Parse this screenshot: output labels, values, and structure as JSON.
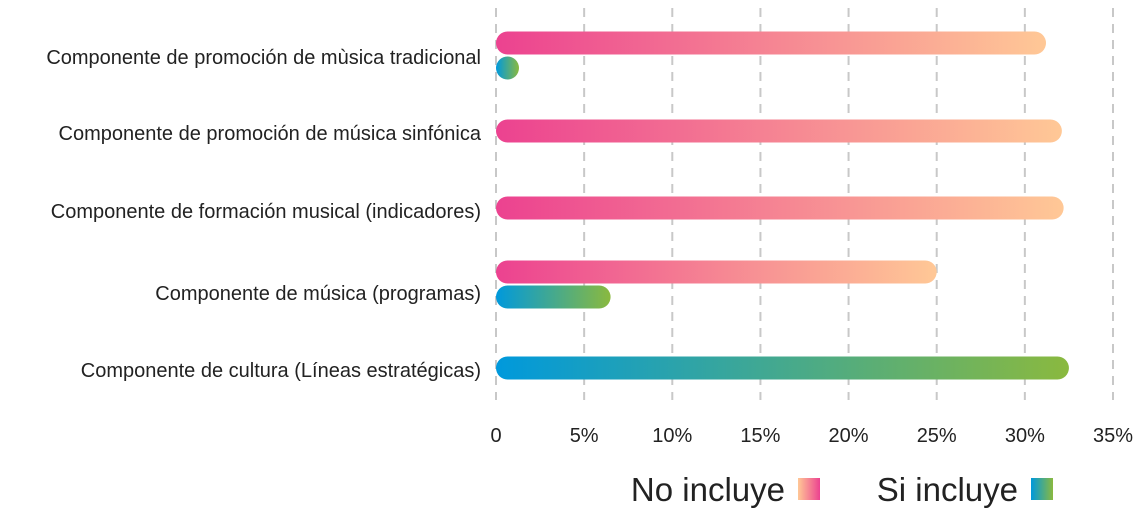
{
  "chart_data": {
    "type": "bar",
    "orientation": "horizontal",
    "categories": [
      "Componente de promoción de mùsica tradicional",
      "Componente de promoción de música sinfónica",
      "Componente de formación musical (indicadores)",
      "Componente de música (programas)",
      "Componente de cultura (Líneas estratégicas)"
    ],
    "series": [
      {
        "name": "No incluye",
        "values": [
          31.2,
          32.1,
          32.2,
          25.0,
          null
        ],
        "gradient": [
          "#ec4290",
          "#ffc896"
        ]
      },
      {
        "name": "Si incluye",
        "values": [
          1.2,
          null,
          null,
          6.5,
          32.5
        ],
        "gradient": [
          "#0099dc",
          "#8ab93f"
        ]
      }
    ],
    "xlim": [
      0,
      35
    ],
    "x_ticks": [
      "0",
      "5%",
      "10%",
      "15%",
      "20%",
      "25%",
      "30%",
      "35%"
    ],
    "grid": "vertical-dashed",
    "legend_position": "bottom"
  }
}
